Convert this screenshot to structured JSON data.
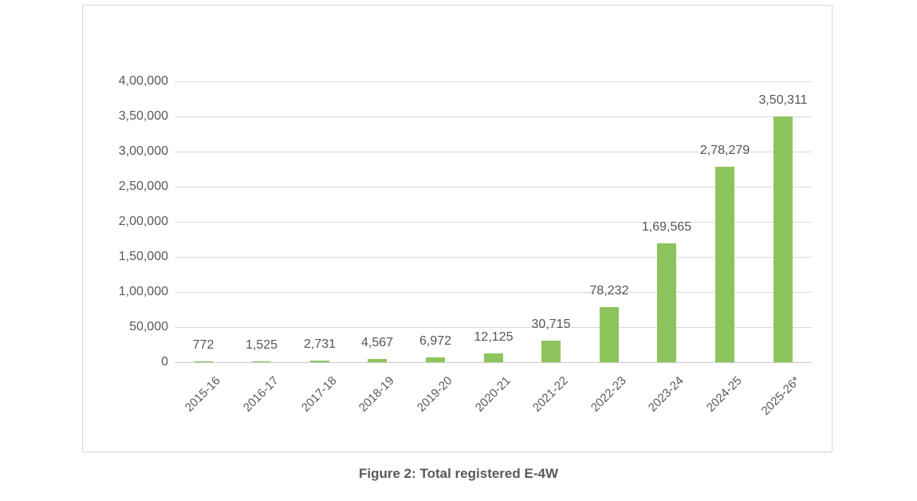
{
  "figure": {
    "caption": "Figure 2: Total registered E-4W"
  },
  "chart_data": {
    "type": "bar",
    "title": "",
    "xlabel": "",
    "ylabel": "",
    "categories": [
      "2015-16",
      "2016-17",
      "2017-18",
      "2018-19",
      "2019-20",
      "2020-21",
      "2021-22",
      "2022-23",
      "2023-24",
      "2024-25",
      "2025-26*"
    ],
    "values": [
      772,
      1525,
      2731,
      4567,
      6972,
      12125,
      30715,
      78232,
      169565,
      278279,
      350311
    ],
    "data_labels": [
      "772",
      "1,525",
      "2,731",
      "4,567",
      "6,972",
      "12,125",
      "30,715",
      "78,232",
      "1,69,565",
      "2,78,279",
      "3,50,311"
    ],
    "y_ticks": [
      0,
      50000,
      100000,
      150000,
      200000,
      250000,
      300000,
      350000,
      400000
    ],
    "y_tick_labels": [
      "0",
      "50,000",
      "1,00,000",
      "1,50,000",
      "2,00,000",
      "2,50,000",
      "3,00,000",
      "3,50,000",
      "4,00,000"
    ],
    "ylim": [
      0,
      400000
    ],
    "grid": true,
    "legend": false,
    "bar_color": "#8dc45c",
    "gridline_color": "#d9d9d9",
    "axis_label_color": "#595959",
    "data_label_color": "#555555"
  }
}
